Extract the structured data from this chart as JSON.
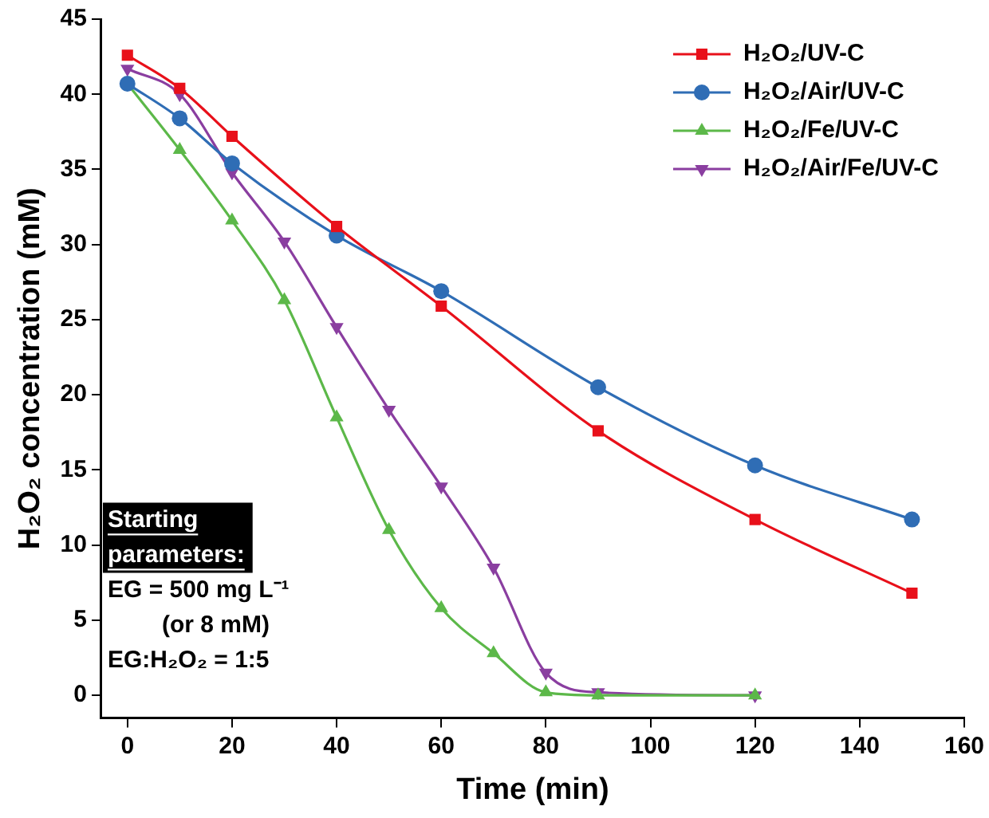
{
  "chart_data": {
    "type": "line",
    "xlabel": "Time (min)",
    "ylabel": "H₂O₂ concentration (mM)",
    "xlim": [
      -5,
      160
    ],
    "xticks": [
      0,
      20,
      40,
      60,
      80,
      100,
      120,
      140,
      160
    ],
    "ylim": [
      -1.5,
      45
    ],
    "yticks": [
      0,
      5,
      10,
      15,
      20,
      25,
      30,
      35,
      40,
      45
    ],
    "grid": false,
    "legend": "top right",
    "series": [
      {
        "name": "H₂O₂/UV-C",
        "color": "#e8101a",
        "marker": "square",
        "x": [
          0,
          10,
          20,
          40,
          60,
          90,
          120,
          150
        ],
        "values": [
          42.6,
          40.4,
          37.2,
          31.2,
          25.9,
          17.6,
          11.7,
          6.8
        ]
      },
      {
        "name": "H₂O₂/Air/UV-C",
        "color": "#2f6db5",
        "marker": "circle",
        "x": [
          0,
          10,
          20,
          40,
          60,
          90,
          120,
          150
        ],
        "values": [
          40.7,
          38.4,
          35.4,
          30.6,
          26.9,
          20.5,
          15.3,
          11.7
        ]
      },
      {
        "name": "H₂O₂/Fe/UV-C",
        "color": "#5cb849",
        "marker": "triangle",
        "x": [
          0,
          10,
          20,
          30,
          40,
          50,
          60,
          70,
          80,
          90,
          120
        ],
        "values": [
          40.7,
          36.3,
          31.6,
          26.3,
          18.5,
          11,
          5.8,
          2.8,
          0.2,
          0,
          0
        ]
      },
      {
        "name": "H₂O₂/Air/Fe/UV-C",
        "color": "#8a3ea0",
        "marker": "triangle-down",
        "x": [
          0,
          10,
          20,
          30,
          40,
          50,
          60,
          70,
          80,
          90,
          120
        ],
        "values": [
          41.7,
          40,
          34.8,
          30.2,
          24.5,
          19,
          13.9,
          8.5,
          1.5,
          0.2,
          0
        ]
      }
    ],
    "annotations": [
      "Starting parameters:",
      "EG = 500 mg L⁻¹",
      "(or 8 mM)",
      "EG:H₂O₂ = 1:5"
    ]
  }
}
